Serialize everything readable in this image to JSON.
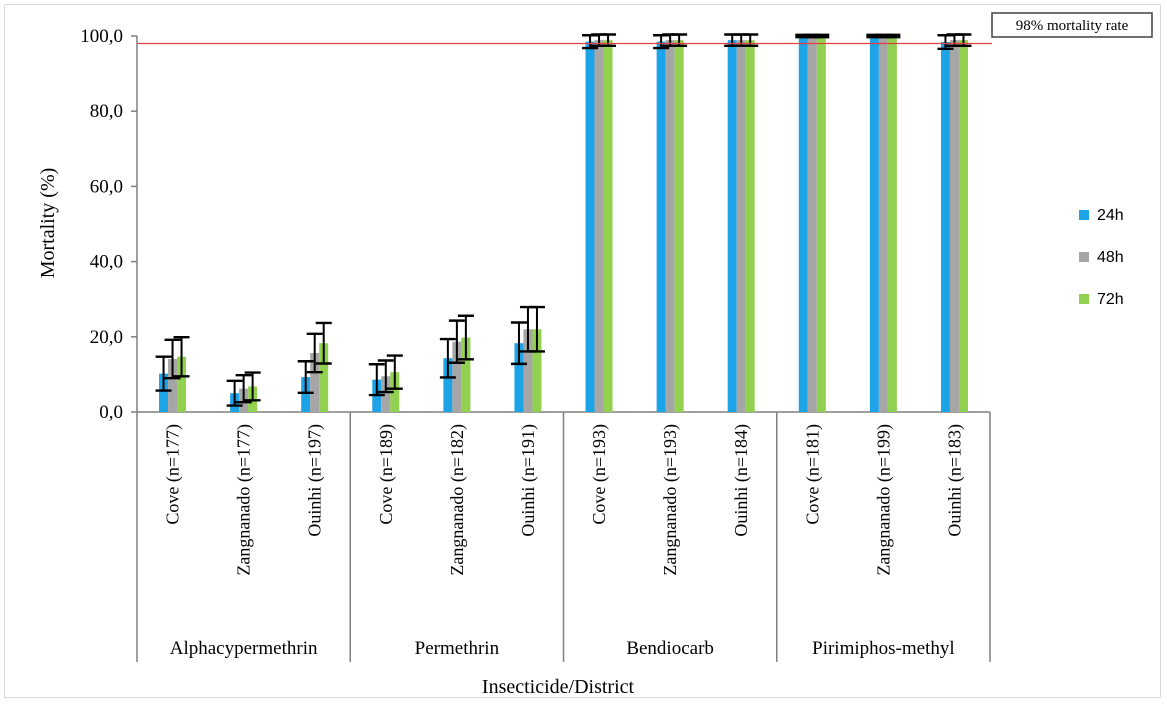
{
  "chart_data": {
    "type": "bar",
    "title": "",
    "xlabel": "Insecticide/District",
    "ylabel": "Mortality (%)",
    "ylim": [
      0,
      100
    ],
    "yticks": [
      "0,0",
      "20,0",
      "40,0",
      "60,0",
      "80,0",
      "100,0"
    ],
    "grid": false,
    "legend_position": "right",
    "reference_line": {
      "value": 98,
      "label": "98% mortality rate",
      "color": "#e04040"
    },
    "groups": [
      {
        "name": "Alphacypermethrin",
        "categories": [
          "Cove (n=177)",
          "Zangnanado (n=177)",
          "Ouinhi (n=197)"
        ]
      },
      {
        "name": "Permethrin",
        "categories": [
          "Cove (n=189)",
          "Zangnanado (n=182)",
          "Ouinhi (n=191)"
        ]
      },
      {
        "name": "Bendiocarb",
        "categories": [
          "Cove (n=193)",
          "Zangnanado (n=193)",
          "Ouinhi (n=184)"
        ]
      },
      {
        "name": "Pirimiphos-methyl",
        "categories": [
          "Cove (n=181)",
          "Zangnanado (n=199)",
          "Ouinhi (n=183)"
        ]
      }
    ],
    "series": [
      {
        "name": "24h",
        "color": "#1ca3e8",
        "values": [
          10.2,
          5.0,
          9.3,
          8.6,
          14.3,
          18.3,
          98.5,
          98.5,
          98.9,
          100,
          100,
          98.4
        ],
        "error": [
          4.5,
          3.3,
          4.2,
          4.1,
          5.1,
          5.5,
          1.7,
          1.7,
          1.5,
          0.3,
          0.3,
          1.8
        ]
      },
      {
        "name": "48h",
        "color": "#a6a6a6",
        "values": [
          14.1,
          6.2,
          15.7,
          9.5,
          18.7,
          22.0,
          98.9,
          98.9,
          98.9,
          100,
          100,
          98.9
        ],
        "error": [
          5.1,
          3.6,
          5.1,
          4.2,
          5.6,
          5.9,
          1.5,
          1.5,
          1.5,
          0.3,
          0.3,
          1.5
        ]
      },
      {
        "name": "72h",
        "color": "#92d050",
        "values": [
          14.7,
          6.8,
          18.3,
          10.6,
          19.8,
          22.0,
          98.9,
          98.9,
          98.9,
          100,
          100,
          98.9
        ],
        "error": [
          5.2,
          3.7,
          5.4,
          4.4,
          5.8,
          5.9,
          1.5,
          1.5,
          1.5,
          0.3,
          0.3,
          1.5
        ]
      }
    ]
  }
}
